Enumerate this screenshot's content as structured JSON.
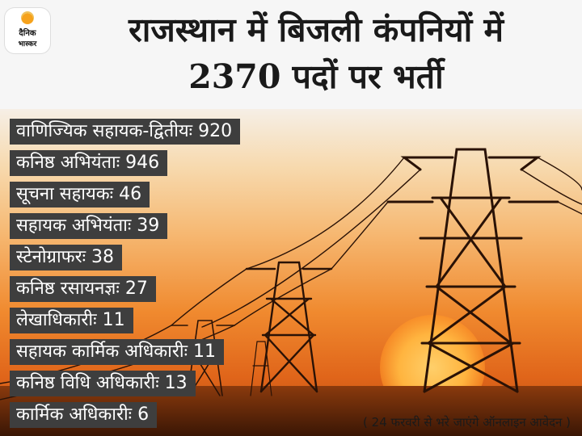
{
  "logo": {
    "line1": "दैनिक",
    "line2": "भास्कर"
  },
  "title": {
    "line1": "राजस्थान में बिजली कंपनियों में",
    "line2": "2370 पदों पर भर्ती"
  },
  "posts": [
    {
      "label": "वाणिज्यिक सहायक-द्वितीयः 920"
    },
    {
      "label": "कनिष्ठ अभियंताः 946"
    },
    {
      "label": "सूचना सहायकः 46"
    },
    {
      "label": "सहायक अभियंताः 39"
    },
    {
      "label": "स्टेनोग्राफरः 38"
    },
    {
      "label": "कनिष्ठ रसायनज्ञः 27"
    },
    {
      "label": "लेखाधिकारीः 11"
    },
    {
      "label": "सहायक कार्मिक अधिकारीः 11"
    },
    {
      "label": "कनिष्ठ विधि अधिकारीः 13"
    },
    {
      "label": "कार्मिक अधिकारीः 6"
    }
  ],
  "note": "( 24 फरवरी से भरे जाएंगे ऑनलाइन आवेदन )",
  "colors": {
    "label_bg": "#3e3e3e",
    "sky_top": "#f6efe6",
    "sky_bottom": "#e0651a"
  },
  "icons": [
    "sun-icon",
    "transmission-tower-icon"
  ]
}
